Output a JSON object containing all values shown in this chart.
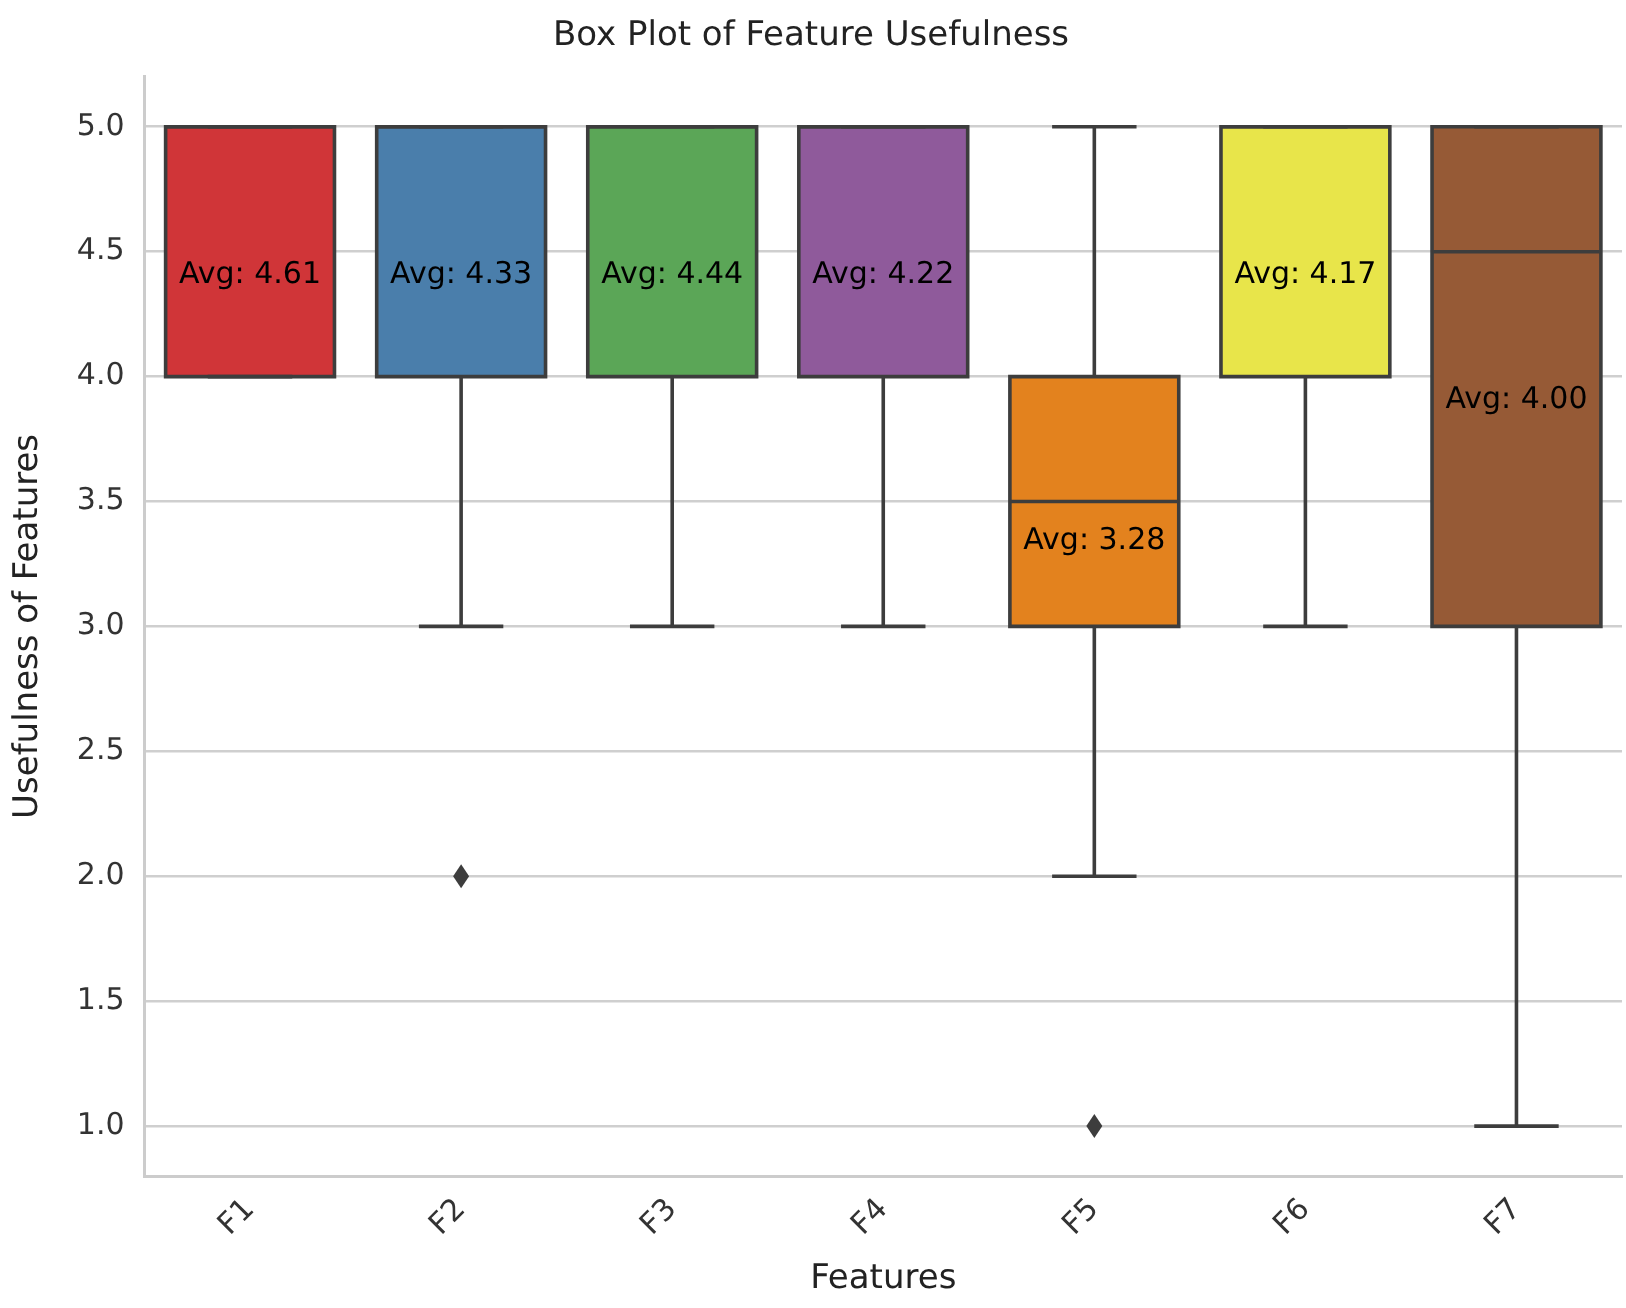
{
  "chart_data": {
    "type": "box",
    "title": "Box Plot of Feature Usefulness",
    "xlabel": "Features",
    "ylabel": "Usefulness of Features",
    "categories": [
      "F1",
      "F2",
      "F3",
      "F4",
      "F5",
      "F6",
      "F7"
    ],
    "colors": [
      "#d03538",
      "#4a7eab",
      "#5ba657",
      "#8f5a9b",
      "#e3821e",
      "#e8e54a",
      "#965a36"
    ],
    "boxes": [
      {
        "low": 4,
        "q1": 4,
        "median": 5,
        "q3": 5,
        "high": 5
      },
      {
        "low": 3,
        "q1": 4,
        "median": 5,
        "q3": 5,
        "high": 5,
        "outliers": [
          2
        ]
      },
      {
        "low": 3,
        "q1": 4,
        "median": 5,
        "q3": 5,
        "high": 5
      },
      {
        "low": 3,
        "q1": 4,
        "median": 5,
        "q3": 5,
        "high": 5
      },
      {
        "low": 2,
        "q1": 3,
        "median": 3.5,
        "q3": 4,
        "high": 5,
        "outliers": [
          1
        ]
      },
      {
        "low": 3,
        "q1": 4,
        "median": 5,
        "q3": 5,
        "high": 5
      },
      {
        "low": 1,
        "q1": 3,
        "median": 4.5,
        "q3": 5,
        "high": 5
      }
    ],
    "annotations": [
      "Avg: 4.61",
      "Avg: 4.33",
      "Avg: 4.44",
      "Avg: 4.22",
      "Avg: 3.28",
      "Avg: 4.17",
      "Avg: 4.00"
    ],
    "ylim": [
      0.8,
      5.2
    ],
    "yticks": [
      {
        "value": 1,
        "label": "1.0"
      },
      {
        "value": 1.5,
        "label": "1.5"
      },
      {
        "value": 2,
        "label": "2.0"
      },
      {
        "value": 2.5,
        "label": "2.5"
      },
      {
        "value": 3,
        "label": "3.0"
      },
      {
        "value": 3.5,
        "label": "3.5"
      },
      {
        "value": 4,
        "label": "4.0"
      },
      {
        "value": 4.5,
        "label": "4.5"
      },
      {
        "value": 5,
        "label": "5.0"
      }
    ],
    "grid": "y"
  }
}
